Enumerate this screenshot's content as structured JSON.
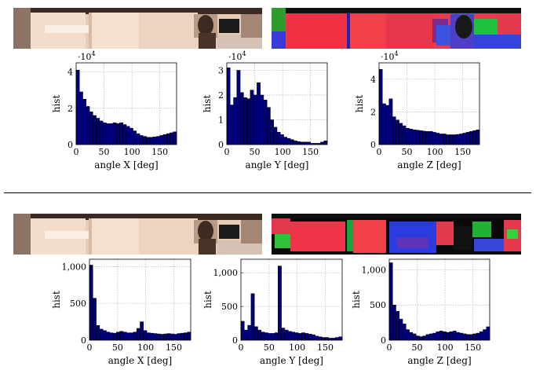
{
  "colors": {
    "bar_fill": "#00007a",
    "bar_stroke": "#000000",
    "grid": "#b9b9b9"
  },
  "thumbnails": [
    {
      "name": "panorama-photo-top",
      "kind": "photo"
    },
    {
      "name": "normal-map-top",
      "kind": "normal"
    },
    {
      "name": "panorama-photo-bottom",
      "kind": "photo"
    },
    {
      "name": "normal-map-bottom",
      "kind": "normal"
    }
  ],
  "chart_data": [
    {
      "type": "bar",
      "group": "top",
      "xlabel": "angle X [deg]",
      "ylabel": "hist",
      "exponent_label": "·10",
      "exponent_power": "4",
      "xlim": [
        0,
        180
      ],
      "ylim": [
        0,
        4.5
      ],
      "xticks": [
        "0",
        "50",
        "100",
        "150"
      ],
      "yticks": [
        "0",
        "2",
        "4"
      ],
      "bin_width": 6,
      "values": [
        4.1,
        2.9,
        2.5,
        2.1,
        1.8,
        1.6,
        1.45,
        1.3,
        1.2,
        1.15,
        1.15,
        1.2,
        1.15,
        1.2,
        1.1,
        1.0,
        0.9,
        0.75,
        0.6,
        0.5,
        0.45,
        0.4,
        0.4,
        0.42,
        0.45,
        0.5,
        0.55,
        0.6,
        0.65,
        0.7
      ]
    },
    {
      "type": "bar",
      "group": "top",
      "xlabel": "angle Y [deg]",
      "ylabel": "hist",
      "exponent_label": "·10",
      "exponent_power": "4",
      "xlim": [
        0,
        180
      ],
      "ylim": [
        0,
        3.3
      ],
      "xticks": [
        "0",
        "50",
        "100",
        "150"
      ],
      "yticks": [
        "0",
        "1",
        "2",
        "3"
      ],
      "bin_width": 6,
      "values": [
        3.1,
        1.6,
        1.9,
        3.0,
        2.1,
        1.9,
        1.85,
        2.2,
        2.0,
        2.5,
        2.0,
        1.8,
        1.5,
        1.0,
        0.7,
        0.5,
        0.4,
        0.3,
        0.25,
        0.2,
        0.15,
        0.12,
        0.1,
        0.1,
        0.1,
        0.05,
        0.05,
        0.05,
        0.1,
        0.15
      ]
    },
    {
      "type": "bar",
      "group": "top",
      "xlabel": "angle Z [deg]",
      "ylabel": "hist",
      "exponent_label": "·10",
      "exponent_power": "4",
      "xlim": [
        0,
        180
      ],
      "ylim": [
        0,
        5
      ],
      "xticks": [
        "0",
        "50",
        "100",
        "150"
      ],
      "yticks": [
        "0",
        "2",
        "4"
      ],
      "bin_width": 6,
      "values": [
        4.6,
        2.5,
        2.4,
        2.8,
        1.7,
        1.5,
        1.3,
        1.15,
        1.0,
        0.95,
        0.9,
        0.88,
        0.85,
        0.82,
        0.8,
        0.8,
        0.75,
        0.7,
        0.65,
        0.65,
        0.6,
        0.6,
        0.6,
        0.62,
        0.65,
        0.7,
        0.75,
        0.8,
        0.85,
        0.9
      ]
    },
    {
      "type": "bar",
      "group": "bottom",
      "xlabel": "angle X [deg]",
      "ylabel": "hist",
      "xlim": [
        0,
        180
      ],
      "ylim": [
        0,
        1100
      ],
      "xticks": [
        "0",
        "50",
        "100",
        "150"
      ],
      "yticks": [
        "0",
        "500",
        "1,000"
      ],
      "bin_width": 6,
      "values": [
        1020,
        570,
        200,
        150,
        130,
        110,
        100,
        95,
        110,
        120,
        110,
        100,
        100,
        110,
        160,
        250,
        130,
        100,
        95,
        90,
        85,
        80,
        85,
        90,
        85,
        80,
        90,
        95,
        100,
        110
      ]
    },
    {
      "type": "bar",
      "group": "bottom",
      "xlabel": "angle Y [deg]",
      "ylabel": "hist",
      "xlim": [
        0,
        180
      ],
      "ylim": [
        0,
        1200
      ],
      "xticks": [
        "0",
        "50",
        "100",
        "150"
      ],
      "yticks": [
        "0",
        "500",
        "1,000"
      ],
      "bin_width": 6,
      "values": [
        280,
        150,
        220,
        690,
        200,
        150,
        120,
        110,
        100,
        100,
        110,
        1100,
        180,
        150,
        130,
        120,
        110,
        100,
        110,
        100,
        90,
        80,
        60,
        50,
        40,
        40,
        30,
        30,
        40,
        50
      ]
    },
    {
      "type": "bar",
      "group": "bottom",
      "xlabel": "angle Z [deg]",
      "ylabel": "hist",
      "xlim": [
        0,
        180
      ],
      "ylim": [
        0,
        1150
      ],
      "xticks": [
        "0",
        "50",
        "100",
        "150"
      ],
      "yticks": [
        "0",
        "500",
        "1,000"
      ],
      "bin_width": 6,
      "values": [
        1100,
        500,
        410,
        300,
        230,
        150,
        110,
        90,
        60,
        50,
        60,
        80,
        90,
        100,
        120,
        130,
        120,
        110,
        120,
        130,
        110,
        100,
        90,
        80,
        80,
        90,
        100,
        120,
        150,
        190
      ]
    }
  ]
}
